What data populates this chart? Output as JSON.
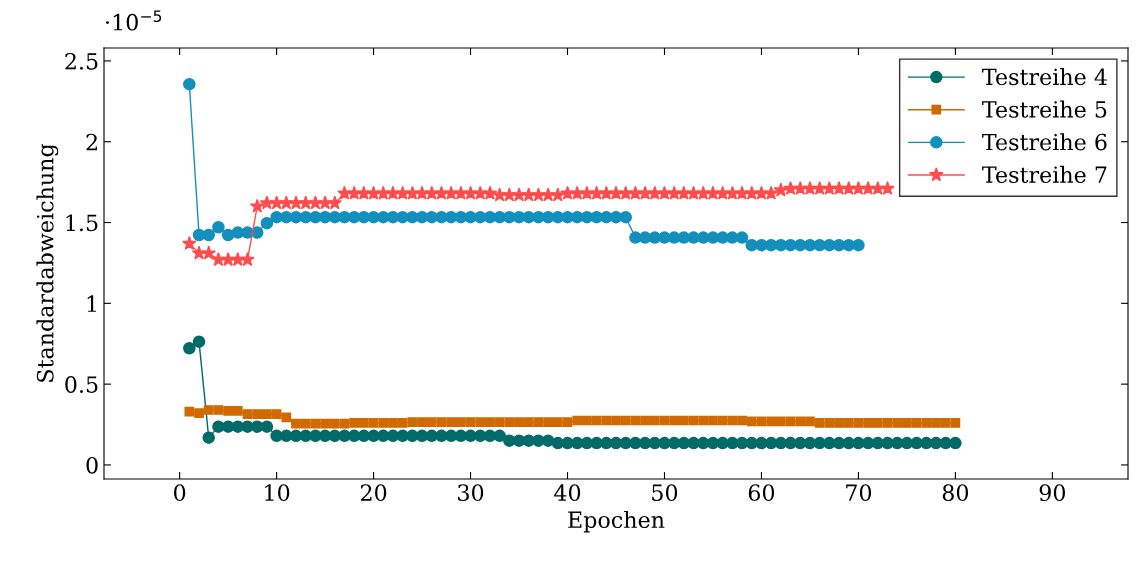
{
  "chart_data": {
    "type": "line",
    "xlabel": "Epochen",
    "ylabel": "Standardabweichung",
    "annotations": [
      "·10$^{−5}$"
    ],
    "x": [
      1,
      2,
      3,
      4,
      5,
      6,
      7,
      8,
      9,
      10,
      11,
      12,
      13,
      14,
      15,
      16,
      17,
      18,
      19,
      20,
      21,
      22,
      23,
      24,
      25,
      26,
      27,
      28,
      29,
      30,
      31,
      32,
      33,
      34,
      35,
      36,
      37,
      38,
      39,
      40,
      41,
      42,
      43,
      44,
      45,
      46,
      47,
      48,
      49,
      50,
      51,
      52,
      53,
      54,
      55,
      56,
      57,
      58,
      59,
      60,
      61,
      62,
      63,
      64,
      65,
      66,
      67,
      68,
      69,
      70,
      71,
      72,
      73,
      74,
      75,
      76,
      77,
      78,
      79,
      80
    ],
    "series": [
      {
        "name": "Testreihe 4",
        "color": "#006b68",
        "marker": "circle",
        "values": [
          0.722,
          0.763,
          0.169,
          0.237,
          0.237,
          0.237,
          0.237,
          0.237,
          0.237,
          0.18,
          0.18,
          0.18,
          0.18,
          0.18,
          0.18,
          0.18,
          0.18,
          0.18,
          0.18,
          0.18,
          0.18,
          0.18,
          0.18,
          0.18,
          0.18,
          0.18,
          0.18,
          0.18,
          0.18,
          0.18,
          0.18,
          0.18,
          0.18,
          0.15,
          0.15,
          0.15,
          0.15,
          0.15,
          0.135,
          0.135,
          0.135,
          0.135,
          0.135,
          0.135,
          0.135,
          0.135,
          0.135,
          0.135,
          0.135,
          0.135,
          0.135,
          0.135,
          0.135,
          0.135,
          0.135,
          0.135,
          0.135,
          0.135,
          0.135,
          0.135,
          0.135,
          0.135,
          0.135,
          0.135,
          0.135,
          0.135,
          0.135,
          0.135,
          0.135,
          0.135,
          0.135,
          0.135,
          0.135,
          0.135,
          0.135,
          0.135,
          0.135,
          0.135,
          0.135,
          0.135
        ]
      },
      {
        "name": "Testreihe 5",
        "color": "#d06a00",
        "marker": "square",
        "values": [
          0.33,
          0.32,
          0.34,
          0.34,
          0.335,
          0.335,
          0.315,
          0.315,
          0.315,
          0.315,
          0.295,
          0.255,
          0.255,
          0.255,
          0.255,
          0.255,
          0.255,
          0.26,
          0.26,
          0.26,
          0.26,
          0.26,
          0.26,
          0.265,
          0.265,
          0.265,
          0.265,
          0.265,
          0.265,
          0.265,
          0.265,
          0.265,
          0.265,
          0.265,
          0.265,
          0.265,
          0.265,
          0.265,
          0.265,
          0.265,
          0.275,
          0.275,
          0.275,
          0.275,
          0.275,
          0.275,
          0.275,
          0.275,
          0.275,
          0.275,
          0.275,
          0.275,
          0.275,
          0.275,
          0.275,
          0.275,
          0.275,
          0.275,
          0.27,
          0.27,
          0.27,
          0.27,
          0.27,
          0.27,
          0.27,
          0.26,
          0.26,
          0.26,
          0.26,
          0.26,
          0.26,
          0.26,
          0.26,
          0.26,
          0.26,
          0.26,
          0.26,
          0.26,
          0.26,
          0.26
        ]
      },
      {
        "name": "Testreihe 6",
        "color": "#138fbd",
        "marker": "circle",
        "values": [
          2.356,
          1.423,
          1.423,
          1.471,
          1.423,
          1.438,
          1.438,
          1.438,
          1.496,
          1.533,
          1.533,
          1.533,
          1.533,
          1.533,
          1.533,
          1.533,
          1.533,
          1.533,
          1.533,
          1.533,
          1.533,
          1.533,
          1.533,
          1.533,
          1.533,
          1.533,
          1.533,
          1.533,
          1.533,
          1.533,
          1.533,
          1.533,
          1.533,
          1.533,
          1.533,
          1.533,
          1.533,
          1.533,
          1.533,
          1.533,
          1.533,
          1.533,
          1.533,
          1.533,
          1.533,
          1.533,
          1.407,
          1.407,
          1.407,
          1.407,
          1.407,
          1.407,
          1.407,
          1.407,
          1.407,
          1.407,
          1.407,
          1.407,
          1.36,
          1.36,
          1.36,
          1.36,
          1.36,
          1.36,
          1.36,
          1.36,
          1.36,
          1.36,
          1.36,
          1.36,
          null,
          null,
          null,
          null,
          null,
          null,
          null,
          null,
          null,
          null
        ]
      },
      {
        "name": "Testreihe 7",
        "color": "#ff4d4d",
        "marker": "star",
        "values": [
          1.37,
          1.31,
          1.31,
          1.27,
          1.27,
          1.27,
          1.27,
          1.6,
          1.62,
          1.62,
          1.62,
          1.62,
          1.62,
          1.62,
          1.62,
          1.62,
          1.68,
          1.68,
          1.68,
          1.68,
          1.68,
          1.68,
          1.68,
          1.68,
          1.68,
          1.68,
          1.68,
          1.68,
          1.68,
          1.68,
          1.68,
          1.68,
          1.67,
          1.67,
          1.67,
          1.67,
          1.67,
          1.67,
          1.67,
          1.68,
          1.68,
          1.68,
          1.68,
          1.68,
          1.68,
          1.68,
          1.68,
          1.68,
          1.68,
          1.68,
          1.68,
          1.68,
          1.68,
          1.68,
          1.68,
          1.68,
          1.68,
          1.68,
          1.68,
          1.68,
          1.68,
          1.7,
          1.71,
          1.71,
          1.71,
          1.71,
          1.71,
          1.71,
          1.71,
          1.71,
          1.71,
          1.71,
          1.71,
          null,
          null,
          null,
          null,
          null,
          null,
          null
        ]
      }
    ],
    "xlim": [
      -7.8,
      97.8
    ],
    "xticks": [
      0,
      10,
      20,
      30,
      40,
      50,
      60,
      70,
      80,
      90
    ],
    "ylim": [
      -0.087,
      2.58
    ],
    "yticks": [
      0,
      0.5,
      1,
      1.5,
      2,
      2.5
    ],
    "grid": false,
    "legend": "top right",
    "line_style": "solid"
  }
}
